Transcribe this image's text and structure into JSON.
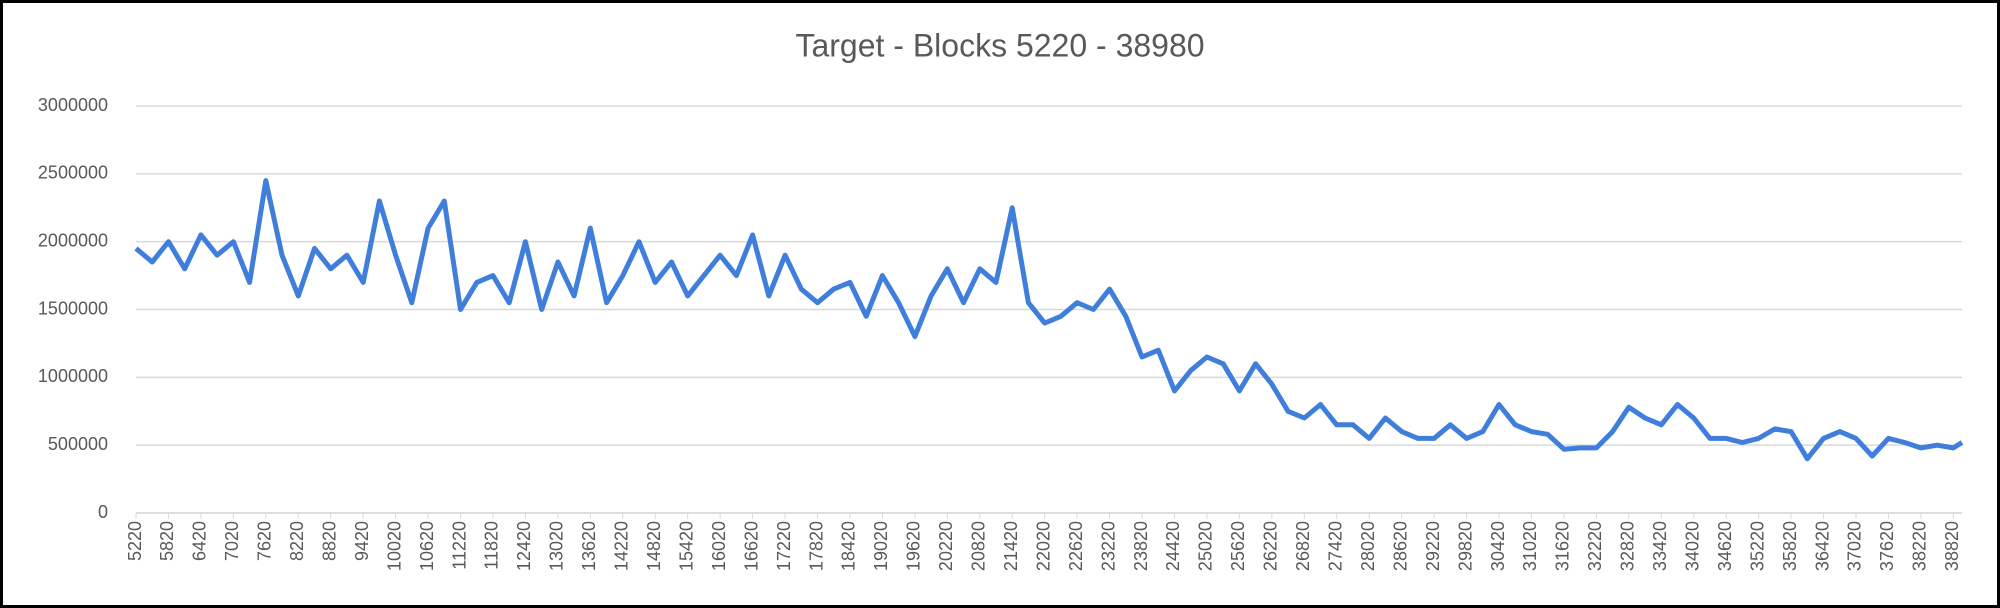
{
  "chart_data": {
    "type": "line",
    "title": "Target - Blocks 5220 - 38980",
    "x": [
      5220,
      5520,
      5820,
      6120,
      6420,
      6720,
      7020,
      7320,
      7620,
      7920,
      8220,
      8520,
      8820,
      9120,
      9420,
      9720,
      10020,
      10320,
      10620,
      10920,
      11220,
      11520,
      11820,
      12120,
      12420,
      12720,
      13020,
      13320,
      13620,
      13920,
      14220,
      14520,
      14820,
      15120,
      15420,
      15720,
      16020,
      16320,
      16620,
      16920,
      17220,
      17520,
      17820,
      18120,
      18420,
      18720,
      19020,
      19320,
      19620,
      19920,
      20220,
      20520,
      20820,
      21120,
      21420,
      21720,
      22020,
      22320,
      22620,
      22920,
      23220,
      23520,
      23820,
      24120,
      24420,
      24720,
      25020,
      25320,
      25620,
      25920,
      26220,
      26520,
      26820,
      27120,
      27420,
      27720,
      28020,
      28320,
      28620,
      28920,
      29220,
      29520,
      29820,
      30120,
      30420,
      30720,
      31020,
      31320,
      31620,
      31920,
      32220,
      32520,
      32820,
      33120,
      33420,
      33720,
      34020,
      34320,
      34620,
      34920,
      35220,
      35520,
      35820,
      36120,
      36420,
      36720,
      37020,
      37320,
      37620,
      37920,
      38220,
      38520,
      38820,
      38980
    ],
    "series": [
      {
        "name": "Target",
        "color": "#3f7fdb",
        "values": [
          1950000,
          1850000,
          2000000,
          1800000,
          2050000,
          1900000,
          2000000,
          1700000,
          2450000,
          1900000,
          1600000,
          1950000,
          1800000,
          1900000,
          1700000,
          2300000,
          1900000,
          1550000,
          2100000,
          2300000,
          1500000,
          1700000,
          1750000,
          1550000,
          2000000,
          1500000,
          1850000,
          1600000,
          2100000,
          1550000,
          1750000,
          2000000,
          1700000,
          1850000,
          1600000,
          1750000,
          1900000,
          1750000,
          2050000,
          1600000,
          1900000,
          1650000,
          1550000,
          1650000,
          1700000,
          1450000,
          1750000,
          1550000,
          1300000,
          1600000,
          1800000,
          1550000,
          1800000,
          1700000,
          2250000,
          1550000,
          1400000,
          1450000,
          1550000,
          1500000,
          1650000,
          1450000,
          1150000,
          1200000,
          900000,
          1050000,
          1150000,
          1100000,
          900000,
          1100000,
          950000,
          750000,
          700000,
          800000,
          650000,
          650000,
          550000,
          700000,
          600000,
          550000,
          550000,
          650000,
          550000,
          600000,
          800000,
          650000,
          600000,
          580000,
          470000,
          480000,
          480000,
          600000,
          780000,
          700000,
          650000,
          800000,
          700000,
          550000,
          550000,
          520000,
          550000,
          620000,
          600000,
          400000,
          550000,
          600000,
          550000,
          420000,
          550000,
          520000,
          480000,
          500000,
          480000,
          520000
        ]
      }
    ],
    "xlim": [
      5220,
      38980
    ],
    "xticks": [
      5220,
      5820,
      6420,
      7020,
      7620,
      8220,
      8820,
      9420,
      10020,
      10620,
      11220,
      11820,
      12420,
      13020,
      13620,
      14220,
      14820,
      15420,
      16020,
      16620,
      17220,
      17820,
      18420,
      19020,
      19620,
      20220,
      20820,
      21420,
      22020,
      22620,
      23220,
      23820,
      24420,
      25020,
      25620,
      26220,
      26820,
      27420,
      28020,
      28620,
      29220,
      29820,
      30420,
      31020,
      31620,
      32220,
      32820,
      33420,
      34020,
      34620,
      35220,
      35820,
      36420,
      37020,
      37620,
      38220,
      38820
    ],
    "ylim": [
      0,
      3000000
    ],
    "yticks": [
      0,
      500000,
      1000000,
      1500000,
      2000000,
      2500000,
      3000000
    ],
    "grid": true
  }
}
